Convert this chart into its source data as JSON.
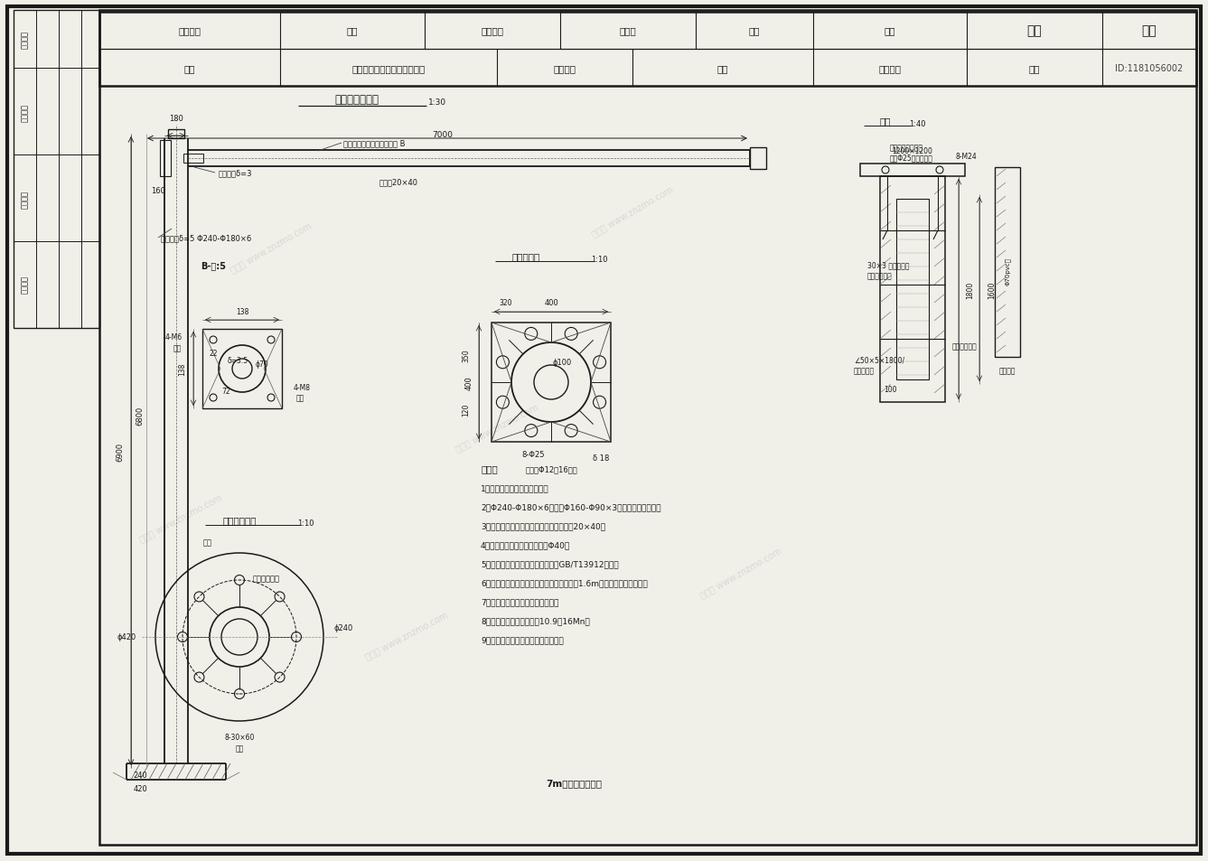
{
  "bg_color": "#f0f0e8",
  "line_color": "#1a1a1a",
  "title": "电子警察立面图",
  "subtitle": "1:30",
  "drawing_name": "电子警察大样图（二）（修）",
  "project_name": "工程名称",
  "sub_item": "子项",
  "traffic": "交通工程",
  "design_no": "设计号",
  "design": "设计",
  "review": "审核",
  "company": "知末",
  "drawing_label": "图名",
  "design_stage": "设计阶段",
  "recheck": "复核",
  "pm": "项目负责",
  "date": "日期",
  "id_text": "ID:1181056002",
  "note_title": "说明：",
  "notes": [
    "1、本图尺寸单位均以毫米计；",
    "2、Φ240-Φ180×6立杆和Φ160-Φ90×3悬臂均为圆形钢管；",
    "3、立杆下端开门，顶部配帽，横臂下开孔20×40；",
    "4、要有从立杆到横臂的穿线孔Φ40；",
    "5、杆体采用整体热镀锌，镀锌符合GB/T13912标准；",
    "6、表面热镀锌后喷塑处理，上白下兰，高地1.6m为兰色，其余为白色；",
    "7、配齐相应的螺栓、螺母、垫圈；",
    "8、法兰联接螺栓采用螺栓10.9级16Mn。",
    "9、立杆底座施工时需进行抱封处理。"
  ],
  "bottom_caption": "7m电子警察大样图",
  "left_labels": [
    "（日期）",
    "（签名）",
    "（签名）",
    "（专业）"
  ],
  "watermark": "知末网 www.znzmo.com"
}
